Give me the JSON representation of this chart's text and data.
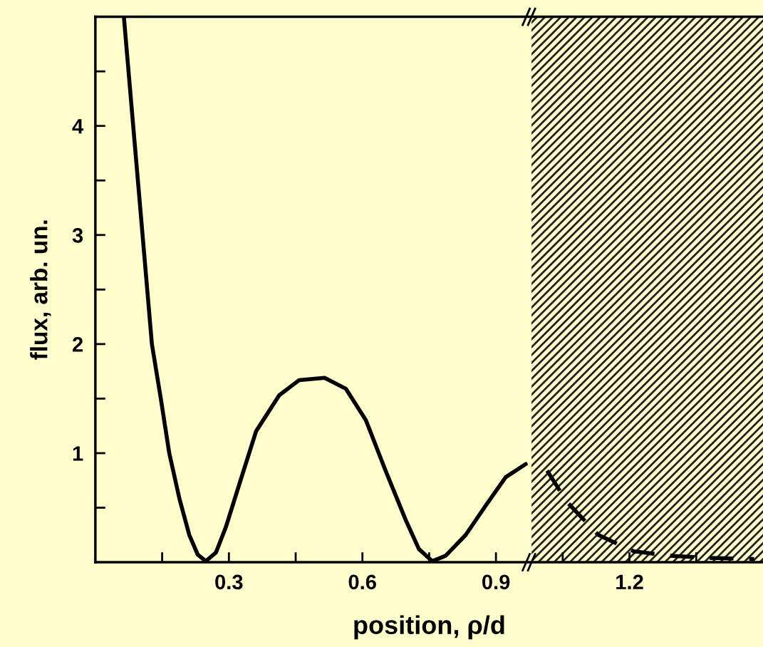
{
  "chart_data": {
    "type": "line",
    "ylabel": "flux, arb. un.",
    "xlabel": "position, ρ/d",
    "xlim": [
      0,
      1.5
    ],
    "ylim": [
      0,
      5
    ],
    "xticks": [
      {
        "value": 0.15,
        "label": null
      },
      0.3,
      {
        "value": 0.45,
        "label": null
      },
      0.6,
      {
        "value": 0.75,
        "label": null
      },
      0.9,
      {
        "value": 1.05,
        "label": null
      },
      1.2,
      {
        "value": 1.35,
        "label": null
      }
    ],
    "yticks": [
      {
        "value": 0.5,
        "label": null
      },
      1,
      {
        "value": 1.5,
        "label": null
      },
      2,
      {
        "value": 2.5,
        "label": null
      },
      3,
      {
        "value": 3.5,
        "label": null
      },
      4,
      {
        "value": 4.5,
        "label": null
      }
    ],
    "grid": false,
    "legend": false,
    "marker": "none",
    "bands": [
      {
        "axis": "x",
        "from": 0.98,
        "to": 1.5,
        "color": "#222222"
      }
    ],
    "series": [
      {
        "color": "#000000",
        "line_style": "solid",
        "x": [
          0.064,
          0.085,
          0.106,
          0.127,
          0.147,
          0.166,
          0.189,
          0.211,
          0.23,
          0.248,
          0.271,
          0.293,
          0.323,
          0.361,
          0.413,
          0.458,
          0.515,
          0.563,
          0.608,
          0.652,
          0.697,
          0.727,
          0.757,
          0.787,
          0.832,
          0.877,
          0.922,
          0.967
        ],
        "values": [
          5.0,
          4.0,
          3.0,
          2.0,
          1.5,
          1.0,
          0.58,
          0.25,
          0.07,
          0.01,
          0.09,
          0.32,
          0.71,
          1.2,
          1.53,
          1.67,
          1.69,
          1.59,
          1.3,
          0.84,
          0.39,
          0.12,
          0.01,
          0.06,
          0.25,
          0.52,
          0.78,
          0.9
        ]
      },
      {
        "color": "#000000",
        "line_style": "dashed",
        "x": [
          1.015,
          1.06,
          1.13,
          1.21,
          1.29,
          1.38,
          1.48
        ],
        "values": [
          0.84,
          0.55,
          0.25,
          0.1,
          0.06,
          0.04,
          0.03
        ]
      }
    ]
  }
}
